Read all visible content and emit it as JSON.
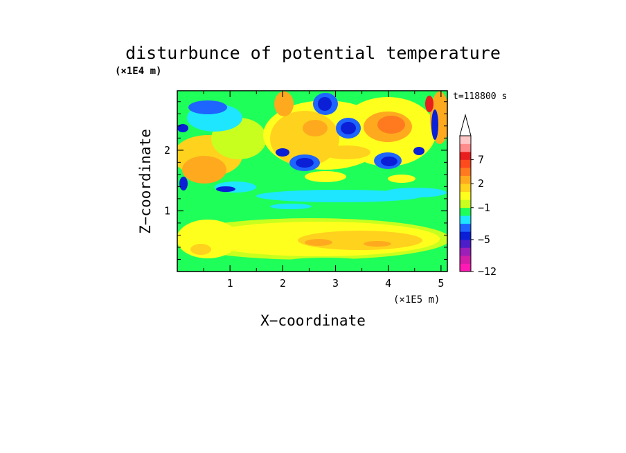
{
  "chart_data": {
    "type": "heatmap",
    "title": "disturbunce of potential temperature",
    "xlabel": "X−coordinate",
    "ylabel": "Z−coordinate",
    "x_scale_label": "(×1E5 m)",
    "y_scale_label": "(×1E4 m)",
    "time_label": "t=118800 s",
    "xlim": [
      0,
      5.12
    ],
    "ylim": [
      0,
      2.98
    ],
    "x_ticks": [
      1,
      2,
      3,
      4,
      5
    ],
    "x_tick_labels": [
      "1",
      "2",
      "3",
      "4",
      "5"
    ],
    "y_ticks": [
      1,
      2
    ],
    "y_tick_labels": [
      "1",
      "2"
    ],
    "colorbar": {
      "colors": [
        "#ff1ab4",
        "#d21ea8",
        "#9b1fb8",
        "#4b1ec9",
        "#0a1fd6",
        "#1e64ff",
        "#1ee6ff",
        "#1eff5a",
        "#c8ff1e",
        "#ffff1e",
        "#ffd21e",
        "#ffaa1e",
        "#ff7a1e",
        "#ff4a1e",
        "#e81e1e",
        "#ff8c8c",
        "#ffc8c8"
      ],
      "tick_labels": [
        "7",
        "2",
        "−1",
        "−5",
        "−12"
      ],
      "tick_levels": [
        7,
        2,
        -1,
        -5,
        -12
      ],
      "extend": "max"
    }
  }
}
